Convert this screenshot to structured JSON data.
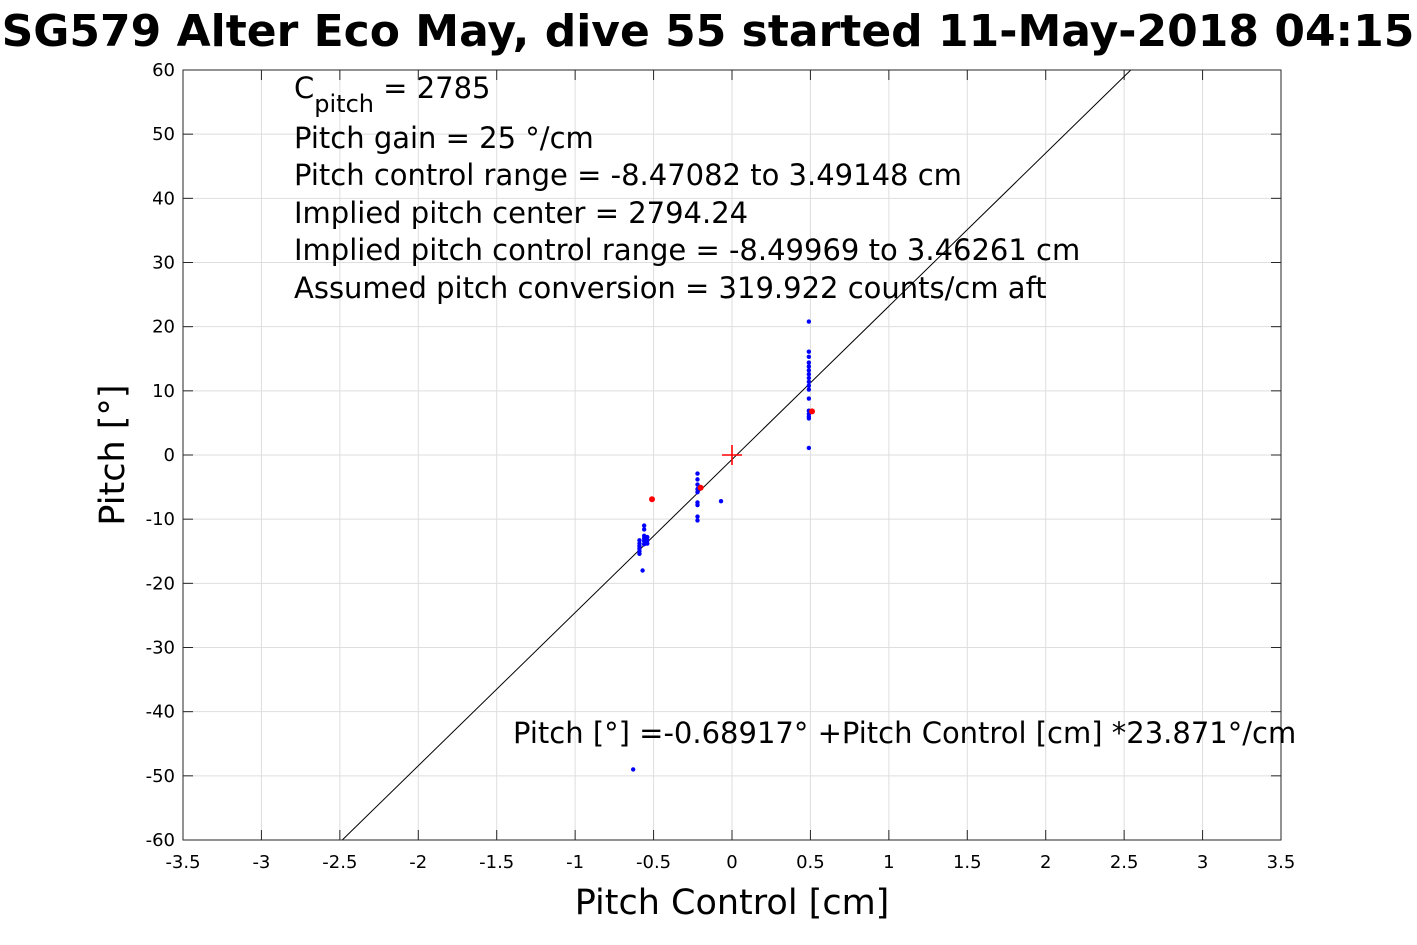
{
  "chart_data": {
    "type": "scatter",
    "title": "SG579 Alter Eco May, dive 55 started 11-May-2018 04:15",
    "xlabel": "Pitch Control [cm]",
    "ylabel": "Pitch [°]",
    "xlim": [
      -3.5,
      3.5
    ],
    "ylim": [
      -60,
      60
    ],
    "xticks": [
      -3.5,
      -3,
      -2.5,
      -2,
      -1.5,
      -1,
      -0.5,
      0,
      0.5,
      1,
      1.5,
      2,
      2.5,
      3,
      3.5
    ],
    "xtick_labels": [
      "-3.5",
      "-3",
      "-2.5",
      "-2",
      "-1.5",
      "-1",
      "-0.5",
      "0",
      "0.5",
      "1",
      "1.5",
      "2",
      "2.5",
      "3",
      "3.5"
    ],
    "yticks": [
      -60,
      -50,
      -40,
      -30,
      -20,
      -10,
      0,
      10,
      20,
      30,
      40,
      50,
      60
    ],
    "ytick_labels": [
      "-60",
      "-50",
      "-40",
      "-30",
      "-20",
      "-10",
      "0",
      "10",
      "20",
      "30",
      "40",
      "50",
      "60"
    ],
    "grid": true,
    "annotations": {
      "cpitch_base": "C",
      "cpitch_sub": "pitch",
      "cpitch_value": " = 2785",
      "lines": [
        "Pitch gain = 25 °/cm",
        "Pitch control range = -8.47082 to 3.49148 cm",
        "Implied pitch center = 2794.24",
        "Implied pitch control range = -8.49969 to 3.46261 cm",
        "Assumed pitch conversion = 319.922 counts/cm aft"
      ],
      "fit_text": "Pitch [°] =-0.68917° +Pitch Control [cm] *23.871°/cm"
    },
    "fit_line": {
      "intercept": -0.68917,
      "slope": 23.871,
      "color": "#000000"
    },
    "center_marker": {
      "x": 0,
      "y": 0,
      "color": "#ff0000",
      "shape": "plus"
    },
    "series": [
      {
        "color": "#0000ff",
        "points": [
          [
            -0.59,
            -13.3
          ],
          [
            -0.59,
            -13.8
          ],
          [
            -0.59,
            -14.2
          ],
          [
            -0.59,
            -14.6
          ],
          [
            -0.59,
            -15.0
          ],
          [
            -0.59,
            -15.4
          ],
          [
            -0.56,
            -11.0
          ],
          [
            -0.56,
            -11.6
          ],
          [
            -0.56,
            -12.6
          ],
          [
            -0.56,
            -13.0
          ],
          [
            -0.56,
            -13.4
          ],
          [
            -0.56,
            -13.9
          ],
          [
            -0.54,
            -12.8
          ],
          [
            -0.54,
            -13.3
          ],
          [
            -0.54,
            -13.8
          ],
          [
            -0.57,
            -18.0
          ],
          [
            -0.22,
            -2.9
          ],
          [
            -0.22,
            -3.8
          ],
          [
            -0.22,
            -4.6
          ],
          [
            -0.22,
            -5.3
          ],
          [
            -0.22,
            -5.8
          ],
          [
            -0.22,
            -7.4
          ],
          [
            -0.22,
            -7.8
          ],
          [
            -0.22,
            -9.6
          ],
          [
            -0.22,
            -10.2
          ],
          [
            -0.07,
            -7.2
          ],
          [
            0.49,
            20.8
          ],
          [
            0.49,
            16.1
          ],
          [
            0.49,
            15.3
          ],
          [
            0.49,
            14.4
          ],
          [
            0.49,
            13.8
          ],
          [
            0.49,
            13.2
          ],
          [
            0.49,
            12.6
          ],
          [
            0.49,
            12.0
          ],
          [
            0.49,
            11.4
          ],
          [
            0.49,
            10.8
          ],
          [
            0.49,
            10.2
          ],
          [
            0.49,
            8.8
          ],
          [
            0.49,
            6.9
          ],
          [
            0.49,
            6.4
          ],
          [
            0.49,
            6.0
          ],
          [
            0.49,
            5.7
          ],
          [
            0.49,
            1.1
          ],
          [
            -0.63,
            -49.0
          ]
        ]
      },
      {
        "color": "#ff0000",
        "points": [
          [
            -0.51,
            -6.9
          ],
          [
            -0.2,
            -5.1
          ],
          [
            0.51,
            6.8
          ]
        ]
      }
    ]
  }
}
